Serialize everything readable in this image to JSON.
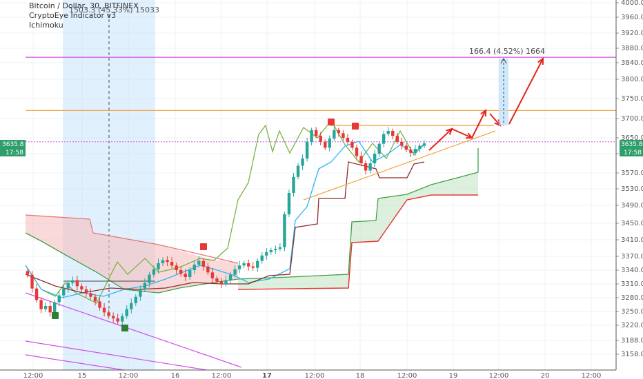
{
  "legend": {
    "title": "Bitcoin / Dollar, 30, BITFINEX",
    "indicator1": "CryptoEye Indicator v3",
    "indicator2": "Ichimoku"
  },
  "annotations": {
    "ruler_top": "1503.3 (45.33%) 15033",
    "ruler_target": "166.4 (4.52%) 1664"
  },
  "price_badges": {
    "price": "3635.8",
    "time": "17:58"
  },
  "chart_data": {
    "type": "candlestick",
    "symbol": "Bitcoin / Dollar",
    "interval": "30",
    "exchange": "BITFINEX",
    "ylim": [
      3130,
      4000
    ],
    "y_ticks": [
      4000.0,
      3960.0,
      3920.0,
      3880.0,
      3840.0,
      3800.0,
      3750.0,
      3700.0,
      3650.0,
      3610.0,
      3570.0,
      3530.0,
      3490.0,
      3450.0,
      3410.0,
      3370.0,
      3340.0,
      3310.0,
      3280.0,
      3250.0,
      3220.0,
      3188.0,
      3158.0
    ],
    "x_ticks": [
      "12:00",
      "15",
      "12:00",
      "16",
      "12:00",
      "17",
      "12:00",
      "18",
      "12:00",
      "19",
      "12:00",
      "20",
      "12:00"
    ],
    "last_price": 3635.8,
    "horizontal_levels": [
      {
        "price": 3855,
        "color": "#d24ee8"
      },
      {
        "price": 3720,
        "color": "#f4a442"
      },
      {
        "price": 3682,
        "color": "#f4a442"
      },
      {
        "price": 3640,
        "color": "#d24ee8"
      }
    ],
    "close_series": [
      3330,
      3300,
      3275,
      3255,
      3262,
      3248,
      3270,
      3285,
      3300,
      3312,
      3318,
      3305,
      3298,
      3290,
      3282,
      3272,
      3258,
      3248,
      3240,
      3235,
      3228,
      3240,
      3255,
      3268,
      3282,
      3298,
      3312,
      3330,
      3342,
      3355,
      3362,
      3358,
      3350,
      3340,
      3332,
      3325,
      3340,
      3352,
      3360,
      3348,
      3335,
      3322,
      3315,
      3310,
      3318,
      3330,
      3342,
      3350,
      3355,
      3348,
      3345,
      3360,
      3372,
      3380,
      3385,
      3388,
      3392,
      3470,
      3520,
      3560,
      3585,
      3600,
      3640,
      3670,
      3655,
      3640,
      3625,
      3648,
      3670,
      3662,
      3650,
      3640,
      3625,
      3605,
      3590,
      3575,
      3590,
      3610,
      3635,
      3660,
      3668,
      3655,
      3640,
      3630,
      3620,
      3612,
      3622,
      3630,
      3636
    ]
  }
}
